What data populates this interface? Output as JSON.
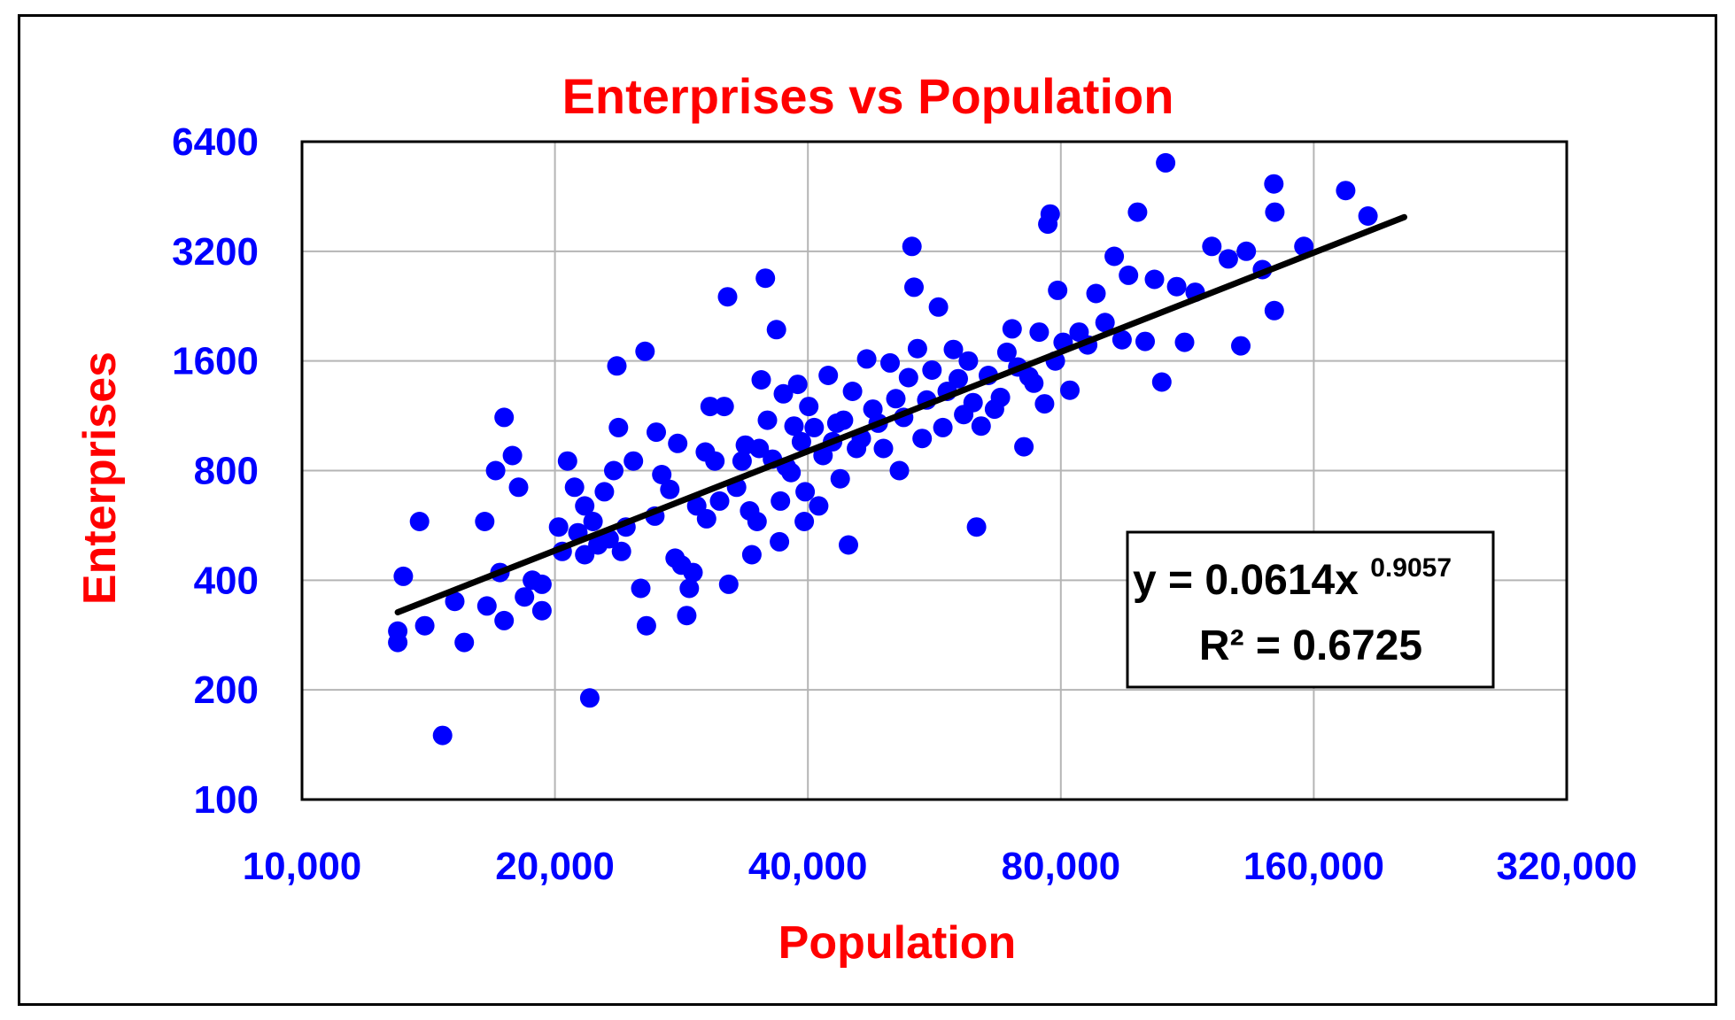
{
  "chart_data": {
    "type": "scatter",
    "title": "Enterprises vs Population",
    "xlabel": "Population",
    "ylabel": "Enterprises",
    "x_scale": "log2",
    "y_scale": "log2",
    "xlim": [
      10000,
      320000
    ],
    "ylim": [
      100,
      6400
    ],
    "x_ticks": [
      10000,
      20000,
      40000,
      80000,
      160000,
      320000
    ],
    "x_tick_labels": [
      "10,000",
      "20,000",
      "40,000",
      "80,000",
      "160,000",
      "320,000"
    ],
    "y_ticks": [
      100,
      200,
      400,
      800,
      1600,
      3200,
      6400
    ],
    "y_tick_labels": [
      "100",
      "200",
      "400",
      "800",
      "1600",
      "3200",
      "6400"
    ],
    "grid": true,
    "colors": {
      "points": "#0000ff",
      "trendline": "#000000",
      "title": "#ff0000",
      "ticks": "#0000ff"
    },
    "trendline": {
      "type": "power",
      "coefficient": 0.0614,
      "exponent": 0.9057,
      "x_range": [
        13000,
        205000
      ],
      "label": {
        "lines": [
          {
            "text": "y = 0.0614x",
            "sup": "0.9057"
          },
          {
            "text": "R² = 0.6725",
            "sup": ""
          }
        ]
      }
    },
    "series": [
      {
        "points": [
          [
            13000,
            290
          ],
          [
            13000,
            270
          ],
          [
            13200,
            410
          ],
          [
            13800,
            580
          ],
          [
            14000,
            300
          ],
          [
            14700,
            150
          ],
          [
            15200,
            350
          ],
          [
            15600,
            270
          ],
          [
            16500,
            580
          ],
          [
            16600,
            340
          ],
          [
            17000,
            800
          ],
          [
            17200,
            420
          ],
          [
            17400,
            1120
          ],
          [
            17400,
            310
          ],
          [
            17800,
            880
          ],
          [
            18100,
            720
          ],
          [
            18400,
            360
          ],
          [
            18800,
            400
          ],
          [
            19300,
            390
          ],
          [
            19300,
            330
          ],
          [
            20200,
            560
          ],
          [
            20400,
            480
          ],
          [
            20700,
            850
          ],
          [
            21100,
            720
          ],
          [
            21300,
            540
          ],
          [
            21700,
            470
          ],
          [
            21700,
            640
          ],
          [
            22000,
            190
          ],
          [
            22200,
            580
          ],
          [
            22500,
            500
          ],
          [
            22900,
            700
          ],
          [
            23200,
            520
          ],
          [
            23500,
            800
          ],
          [
            23800,
            1050
          ],
          [
            23700,
            1550
          ],
          [
            24000,
            480
          ],
          [
            24300,
            560
          ],
          [
            24800,
            850
          ],
          [
            25300,
            380
          ],
          [
            25600,
            1700
          ],
          [
            25700,
            300
          ],
          [
            26300,
            600
          ],
          [
            26400,
            1020
          ],
          [
            26800,
            780
          ],
          [
            27400,
            710
          ],
          [
            27800,
            460
          ],
          [
            28000,
            950
          ],
          [
            28300,
            440
          ],
          [
            28700,
            320
          ],
          [
            28900,
            380
          ],
          [
            29200,
            420
          ],
          [
            29500,
            640
          ],
          [
            30200,
            900
          ],
          [
            30300,
            590
          ],
          [
            30600,
            1200
          ],
          [
            31000,
            850
          ],
          [
            31400,
            660
          ],
          [
            31800,
            1200
          ],
          [
            32100,
            2400
          ],
          [
            32200,
            390
          ],
          [
            32900,
            720
          ],
          [
            33400,
            850
          ],
          [
            33700,
            940
          ],
          [
            34100,
            620
          ],
          [
            34300,
            470
          ],
          [
            34800,
            580
          ],
          [
            35000,
            920
          ],
          [
            35200,
            1420
          ],
          [
            35600,
            2700
          ],
          [
            35800,
            1100
          ],
          [
            36300,
            860
          ],
          [
            36700,
            1950
          ],
          [
            37000,
            510
          ],
          [
            37100,
            660
          ],
          [
            37400,
            1300
          ],
          [
            37700,
            820
          ],
          [
            38200,
            790
          ],
          [
            38500,
            1060
          ],
          [
            38900,
            1380
          ],
          [
            39300,
            960
          ],
          [
            39600,
            580
          ],
          [
            39700,
            700
          ],
          [
            40100,
            1200
          ],
          [
            40700,
            1050
          ],
          [
            41200,
            640
          ],
          [
            41700,
            880
          ],
          [
            42300,
            1460
          ],
          [
            42800,
            960
          ],
          [
            43300,
            1080
          ],
          [
            43700,
            760
          ],
          [
            44100,
            1100
          ],
          [
            44700,
            500
          ],
          [
            45200,
            1320
          ],
          [
            45700,
            920
          ],
          [
            46300,
            980
          ],
          [
            47000,
            1620
          ],
          [
            47800,
            1180
          ],
          [
            48500,
            1080
          ],
          [
            49200,
            920
          ],
          [
            50100,
            1580
          ],
          [
            50900,
            1260
          ],
          [
            51400,
            800
          ],
          [
            52000,
            1120
          ],
          [
            52700,
            1440
          ],
          [
            53200,
            3300
          ],
          [
            53500,
            2550
          ],
          [
            54000,
            1730
          ],
          [
            54700,
            980
          ],
          [
            55400,
            1250
          ],
          [
            56200,
            1510
          ],
          [
            57200,
            2250
          ],
          [
            57900,
            1050
          ],
          [
            58600,
            1320
          ],
          [
            59600,
            1720
          ],
          [
            60400,
            1430
          ],
          [
            61300,
            1140
          ],
          [
            62100,
            1600
          ],
          [
            62900,
            1230
          ],
          [
            63500,
            560
          ],
          [
            64300,
            1060
          ],
          [
            65600,
            1460
          ],
          [
            66700,
            1180
          ],
          [
            67800,
            1270
          ],
          [
            69000,
            1690
          ],
          [
            70000,
            1960
          ],
          [
            71100,
            1540
          ],
          [
            72300,
            930
          ],
          [
            73300,
            1450
          ],
          [
            74300,
            1390
          ],
          [
            75400,
            1920
          ],
          [
            76500,
            1220
          ],
          [
            77200,
            3800
          ],
          [
            77700,
            4050
          ],
          [
            78800,
            1600
          ],
          [
            79300,
            2500
          ],
          [
            80500,
            1800
          ],
          [
            82000,
            1330
          ],
          [
            84100,
            1920
          ],
          [
            86100,
            1770
          ],
          [
            88100,
            2450
          ],
          [
            90300,
            2040
          ],
          [
            92600,
            3100
          ],
          [
            94600,
            1830
          ],
          [
            96300,
            2750
          ],
          [
            98700,
            4100
          ],
          [
            100800,
            1810
          ],
          [
            103400,
            2680
          ],
          [
            105500,
            1400
          ],
          [
            106600,
            5600
          ],
          [
            109900,
            2560
          ],
          [
            112300,
            1800
          ],
          [
            115600,
            2470
          ],
          [
            121000,
            3300
          ],
          [
            126600,
            3050
          ],
          [
            131000,
            1760
          ],
          [
            133000,
            3200
          ],
          [
            139000,
            2850
          ],
          [
            143400,
            4900
          ],
          [
            143600,
            2200
          ],
          [
            143800,
            4100
          ],
          [
            155700,
            3300
          ],
          [
            174600,
            4700
          ],
          [
            185600,
            4000
          ]
        ]
      }
    ]
  }
}
